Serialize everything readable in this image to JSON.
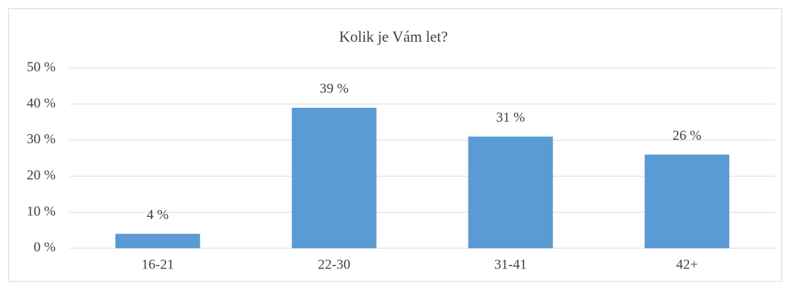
{
  "chart_data": {
    "type": "bar",
    "title": "Kolik je Vám let?",
    "categories": [
      "16-21",
      "22-30",
      "31-41",
      "42+"
    ],
    "values": [
      4,
      39,
      31,
      26
    ],
    "value_labels": [
      "4 %",
      "39 %",
      "31 %",
      "26 %"
    ],
    "color": "#5b9bd5",
    "ylim": [
      0,
      50
    ],
    "yticks": [
      {
        "value": 0,
        "label": "0 %"
      },
      {
        "value": 10,
        "label": "10 %"
      },
      {
        "value": 20,
        "label": "20 %"
      },
      {
        "value": 30,
        "label": "30 %"
      },
      {
        "value": 40,
        "label": "40 %"
      },
      {
        "value": 50,
        "label": "50 %"
      }
    ],
    "grid": true
  }
}
